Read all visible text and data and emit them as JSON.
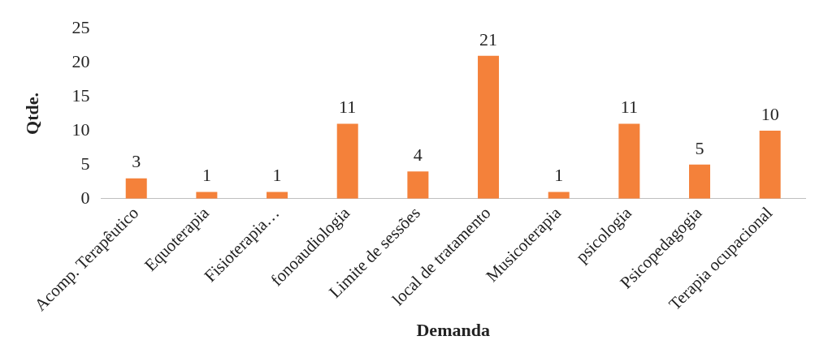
{
  "chart_data": {
    "type": "bar",
    "xlabel": "Demanda",
    "ylabel": "Qtde.",
    "categories": [
      "Acomp. Terapêutico",
      "Equoterapia",
      "Fisioterapia…",
      "fonoaudiologia",
      "Limite de sessões",
      "local de tratamento",
      "Musicoterapia",
      "psicologia",
      "Psicopedagogia",
      "Terapia ocupacional"
    ],
    "values": [
      3,
      1,
      1,
      11,
      4,
      21,
      1,
      11,
      5,
      10
    ],
    "color": "#f4813a",
    "ylim": [
      0,
      25
    ],
    "yticks": [
      0,
      5,
      10,
      15,
      20,
      25
    ],
    "grid": false,
    "legend": false,
    "data_labels": true
  }
}
